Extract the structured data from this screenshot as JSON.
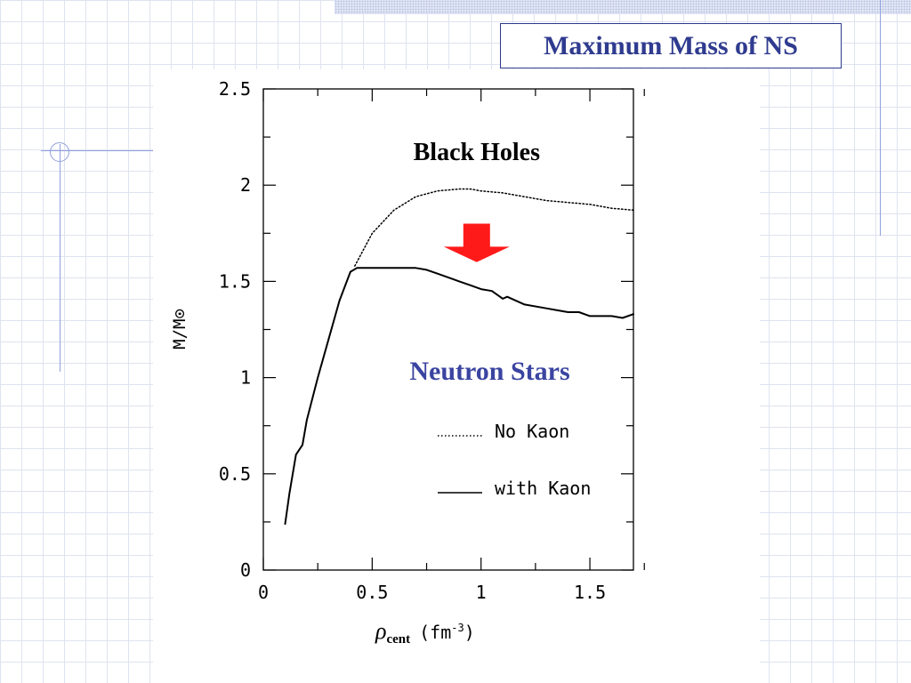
{
  "slide": {
    "title": "Maximum Mass of NS"
  },
  "chart_data": {
    "type": "line",
    "xlabel": "ρcent (fm⁻³)",
    "xlabel_main": "ρ",
    "xlabel_sub": "cent",
    "xlabel_unit": "(fm",
    "xlabel_exp": "-3",
    "xlabel_close": ")",
    "ylabel": "M/M⊙",
    "xlim": [
      0,
      1.7
    ],
    "ylim": [
      0,
      2.5
    ],
    "x_ticks": [
      {
        "value": 0,
        "label": "0"
      },
      {
        "value": 0.5,
        "label": "0.5"
      },
      {
        "value": 1,
        "label": "1"
      },
      {
        "value": 1.5,
        "label": "1.5"
      }
    ],
    "y_ticks": [
      {
        "value": 0,
        "label": "0"
      },
      {
        "value": 0.5,
        "label": "0.5"
      },
      {
        "value": 1,
        "label": "1"
      },
      {
        "value": 1.5,
        "label": "1.5"
      },
      {
        "value": 2,
        "label": "2"
      },
      {
        "value": 2.5,
        "label": "2.5"
      }
    ],
    "series": [
      {
        "name": "No Kaon",
        "style": "dotted",
        "x": [
          0.42,
          0.5,
          0.6,
          0.7,
          0.8,
          0.9,
          0.95,
          1.0,
          1.1,
          1.2,
          1.3,
          1.4,
          1.5,
          1.6,
          1.7
        ],
        "y": [
          1.58,
          1.75,
          1.87,
          1.94,
          1.97,
          1.98,
          1.98,
          1.97,
          1.96,
          1.94,
          1.92,
          1.91,
          1.9,
          1.88,
          1.87
        ]
      },
      {
        "name": "with Kaon",
        "style": "solid",
        "x": [
          0.1,
          0.12,
          0.15,
          0.18,
          0.2,
          0.25,
          0.3,
          0.35,
          0.4,
          0.43,
          0.45,
          0.5,
          0.6,
          0.7,
          0.75,
          0.8,
          0.9,
          0.95,
          1.0,
          1.05,
          1.1,
          1.12,
          1.2,
          1.3,
          1.35,
          1.4,
          1.45,
          1.5,
          1.6,
          1.65,
          1.7
        ],
        "y": [
          0.24,
          0.4,
          0.6,
          0.65,
          0.78,
          1.0,
          1.2,
          1.4,
          1.55,
          1.57,
          1.57,
          1.57,
          1.57,
          1.57,
          1.56,
          1.54,
          1.5,
          1.48,
          1.46,
          1.45,
          1.41,
          1.42,
          1.38,
          1.36,
          1.35,
          1.34,
          1.34,
          1.32,
          1.32,
          1.31,
          1.33
        ]
      }
    ],
    "annotations": [
      {
        "text": "Black Holes",
        "x": 0.98,
        "y": 2.13,
        "color": "#000000"
      },
      {
        "text": "Neutron Stars",
        "x": 1.04,
        "y": 0.99,
        "color": "#3a44a0"
      }
    ],
    "arrow": {
      "x": 0.98,
      "y_top": 1.8,
      "y_tip": 1.6,
      "color": "#ff1a1a"
    },
    "legend_placement": "center-right",
    "grid": false
  }
}
